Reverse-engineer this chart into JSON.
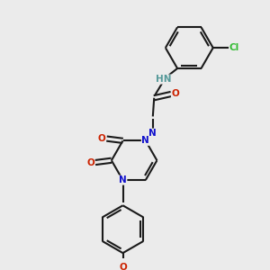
{
  "background_color": "#ebebeb",
  "bond_color": "#1a1a1a",
  "bond_lw": 1.5,
  "atom_colors": {
    "N": "#1010cc",
    "O": "#cc2200",
    "Cl": "#33bb33",
    "H": "#559999"
  },
  "font_size": 7.5,
  "figsize": [
    3.0,
    3.0
  ],
  "dpi": 100,
  "xlim": [
    0,
    10
  ],
  "ylim": [
    0,
    10
  ]
}
